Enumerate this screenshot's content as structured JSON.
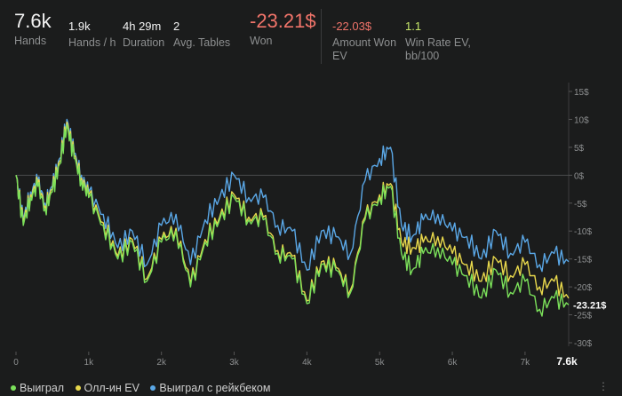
{
  "stats": {
    "hands": {
      "value": "7.6k",
      "label": "Hands"
    },
    "hands_per_hour": {
      "value": "1.9k",
      "label": "Hands / h"
    },
    "duration": {
      "value": "4h 29m",
      "label": "Duration"
    },
    "avg_tables": {
      "value": "2",
      "label": "Avg. Tables"
    },
    "won": {
      "value": "-23.21$",
      "label": "Won"
    },
    "amount_won_ev": {
      "value": "-22.03$",
      "label": "Amount Won EV"
    },
    "win_rate_ev": {
      "value": "1.1",
      "label": "Win Rate EV, bb/100"
    }
  },
  "colors": {
    "background": "#1b1c1c",
    "won": "#7be05a",
    "allin_ev": "#e8d84c",
    "rakeback": "#5aa7e6",
    "negative": "#f0746a",
    "positive_ev": "#c8e86a"
  },
  "chart_data": {
    "type": "line",
    "x": [
      0,
      100,
      200,
      300,
      400,
      500,
      600,
      700,
      800,
      900,
      1000,
      1200,
      1400,
      1600,
      1800,
      2000,
      2200,
      2400,
      2600,
      2800,
      3000,
      3200,
      3400,
      3600,
      3800,
      4000,
      4200,
      4400,
      4600,
      4800,
      5000,
      5150,
      5300,
      5450,
      5600,
      5800,
      6000,
      6200,
      6400,
      6600,
      6800,
      7000,
      7200,
      7400,
      7600
    ],
    "series": [
      {
        "name": "Выиграл",
        "color": "#7be05a",
        "values": [
          0,
          -9,
          -4,
          -2,
          -6,
          -3,
          2,
          9,
          3,
          -1,
          -4,
          -9,
          -15,
          -12,
          -19,
          -12,
          -10,
          -20,
          -12,
          -8,
          -4,
          -8,
          -8,
          -14,
          -15,
          -23,
          -16,
          -17,
          -21,
          -8,
          -4,
          -2,
          -14,
          -17,
          -14,
          -13,
          -16,
          -18,
          -22,
          -17,
          -21,
          -19,
          -24,
          -22,
          -23.21
        ]
      },
      {
        "name": "Олл-ин EV",
        "color": "#e8d84c",
        "values": [
          0,
          -8.5,
          -3.5,
          -1.5,
          -5.5,
          -2.5,
          2.5,
          9.5,
          3.5,
          -0.5,
          -3.5,
          -8.5,
          -14.5,
          -11.5,
          -18.5,
          -11.5,
          -9.5,
          -19.5,
          -11.5,
          -7.5,
          -3.5,
          -7.5,
          -7.5,
          -13.5,
          -14.5,
          -22.5,
          -15.5,
          -16.5,
          -20.5,
          -7.5,
          -3.5,
          -1.5,
          -12,
          -13,
          -12,
          -11,
          -14,
          -16,
          -19,
          -15,
          -18,
          -16,
          -20,
          -19,
          -22.03
        ]
      },
      {
        "name": "Выиграл с рейкбеком",
        "color": "#5aa7e6",
        "values": [
          0,
          -8,
          -3,
          -1,
          -5,
          -2,
          3,
          10,
          4,
          0,
          -3,
          -7,
          -13,
          -10,
          -16,
          -9,
          -7,
          -16,
          -8,
          -4,
          0,
          -4,
          -4,
          -9,
          -10,
          -17,
          -10,
          -11,
          -14,
          -1,
          3,
          5,
          -9,
          -11,
          -8,
          -7,
          -10,
          -11,
          -15,
          -10,
          -14,
          -12,
          -16,
          -14,
          -15.5
        ]
      }
    ],
    "y_ticks": [
      "15$",
      "10$",
      "5$",
      "0$",
      "-5$",
      "-10$",
      "-15$",
      "-20$",
      "-25$",
      "-30$"
    ],
    "x_ticks": [
      "0",
      "1k",
      "2k",
      "3k",
      "4k",
      "5k",
      "6k",
      "7k"
    ],
    "x_end_label": "7.6k",
    "current_value_label": "-23.21$",
    "ylim": [
      -30,
      15
    ],
    "xlim": [
      0,
      7600
    ],
    "grid": false,
    "legend_position": "bottom-left"
  },
  "legend": {
    "won": "Выиграл",
    "allin_ev": "Олл-ин EV",
    "rakeback": "Выиграл с рейкбеком"
  },
  "menu_icon": "more-dots-icon"
}
